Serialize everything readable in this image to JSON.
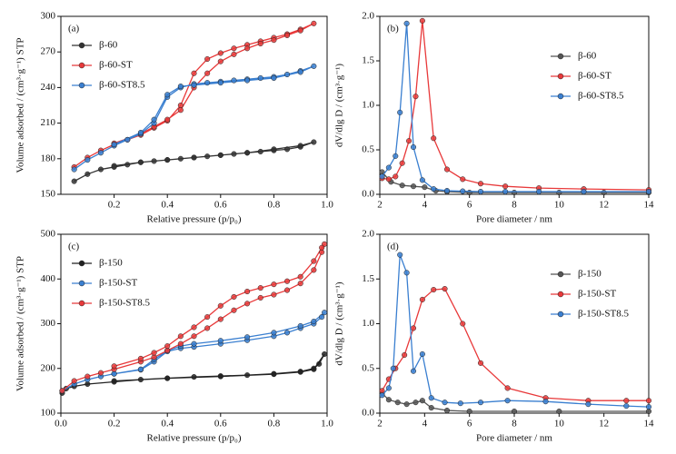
{
  "chart_data": [
    {
      "type": "line",
      "panel_label": "(a)",
      "xlabel": "Relative pressure (p/p₀)",
      "ylabel": "Volume adsorbed / (cm³·g⁻¹) STP",
      "xlim": [
        0,
        1
      ],
      "xticks": [
        0.2,
        0.4,
        0.6,
        0.8,
        {
          "value": 1,
          "label": "1.0"
        }
      ],
      "ylim": [
        150,
        300
      ],
      "yticks": [
        150,
        180,
        210,
        240,
        270,
        300
      ],
      "legend": "upper left",
      "series": [
        {
          "name": "β-60",
          "color": "#333333",
          "x": [
            0.05,
            0.1,
            0.15,
            0.2,
            0.25,
            0.3,
            0.35,
            0.4,
            0.45,
            0.5,
            0.55,
            0.6,
            0.65,
            0.7,
            0.75,
            0.8,
            0.85,
            0.9,
            0.95,
            0.9,
            0.8,
            0.7,
            0.6,
            0.5,
            0.4,
            0.3,
            0.2
          ],
          "values": [
            161,
            167,
            171,
            173,
            175,
            177,
            178,
            179,
            180,
            181,
            182,
            183,
            184,
            185,
            186,
            187,
            188,
            190,
            194,
            191,
            188,
            185,
            183,
            181,
            179,
            177,
            174
          ]
        },
        {
          "name": "β-60-ST",
          "color": "#e8393a",
          "x": [
            0.05,
            0.1,
            0.15,
            0.2,
            0.25,
            0.3,
            0.35,
            0.4,
            0.45,
            0.5,
            0.55,
            0.6,
            0.65,
            0.7,
            0.75,
            0.8,
            0.85,
            0.9,
            0.95,
            0.9,
            0.85,
            0.8,
            0.75,
            0.7,
            0.65,
            0.6,
            0.55,
            0.5,
            0.45,
            0.4,
            0.35,
            0.3,
            0.2
          ],
          "values": [
            173,
            181,
            187,
            192,
            196,
            200,
            206,
            212,
            225,
            252,
            264,
            269,
            273,
            276,
            279,
            282,
            285,
            289,
            294,
            288,
            284,
            280,
            277,
            273,
            268,
            262,
            252,
            240,
            221,
            213,
            207,
            201,
            193
          ]
        },
        {
          "name": "β-60-ST8.5",
          "color": "#3a7fd0",
          "x": [
            0.05,
            0.1,
            0.15,
            0.2,
            0.25,
            0.3,
            0.35,
            0.4,
            0.45,
            0.5,
            0.55,
            0.6,
            0.65,
            0.7,
            0.75,
            0.8,
            0.85,
            0.9,
            0.95,
            0.9,
            0.8,
            0.7,
            0.6,
            0.5,
            0.45,
            0.4,
            0.35,
            0.3,
            0.2
          ],
          "values": [
            171,
            179,
            185,
            191,
            196,
            201,
            210,
            232,
            240,
            243,
            244,
            245,
            246,
            247,
            248,
            249,
            251,
            254,
            258,
            253,
            248,
            246,
            244,
            242,
            241,
            234,
            213,
            202,
            192
          ]
        }
      ]
    },
    {
      "type": "line",
      "panel_label": "(b)",
      "xlabel": "Pore diameter / nm",
      "ylabel": "dV/dlg D / (cm³·g⁻¹)",
      "xlim": [
        2,
        14
      ],
      "xticks": [
        2,
        4,
        6,
        8,
        10,
        12,
        14
      ],
      "ylim": [
        0,
        2
      ],
      "yticks": [
        {
          "value": 0,
          "label": "0.0"
        },
        0.5,
        {
          "value": 1,
          "label": "1.0"
        },
        1.5,
        {
          "value": 2,
          "label": "2.0"
        }
      ],
      "legend": "upper right",
      "series": [
        {
          "name": "β-60",
          "color": "#555555",
          "x": [
            2.1,
            2.5,
            3,
            3.5,
            4,
            4.5,
            5,
            6,
            8,
            10,
            12,
            14
          ],
          "values": [
            0.25,
            0.14,
            0.1,
            0.09,
            0.08,
            0.04,
            0.03,
            0.02,
            0.02,
            0.02,
            0.02,
            0.02
          ]
        },
        {
          "name": "β-60-ST",
          "color": "#e8393a",
          "x": [
            2.1,
            2.4,
            2.7,
            3,
            3.3,
            3.6,
            3.9,
            4.4,
            5,
            5.7,
            6.5,
            7.6,
            9.1,
            11.1,
            14
          ],
          "values": [
            0.18,
            0.17,
            0.2,
            0.35,
            0.6,
            1.1,
            1.95,
            0.63,
            0.28,
            0.17,
            0.12,
            0.09,
            0.07,
            0.06,
            0.05
          ]
        },
        {
          "name": "β-60-ST8.5",
          "color": "#3a7fd0",
          "x": [
            2.1,
            2.4,
            2.7,
            2.9,
            3.2,
            3.5,
            3.9,
            4.4,
            5,
            5.7,
            6.5,
            7.6,
            9.1,
            11.1,
            14
          ],
          "values": [
            0.2,
            0.3,
            0.43,
            0.92,
            1.92,
            0.53,
            0.16,
            0.06,
            0.04,
            0.035,
            0.03,
            0.03,
            0.03,
            0.03,
            0.03
          ]
        }
      ]
    },
    {
      "type": "line",
      "panel_label": "(c)",
      "xlabel": "Relative pressure (p/p₀)",
      "ylabel": "Volume adsorbed / (cm³·g⁻¹) STP",
      "xlim": [
        0,
        1
      ],
      "xticks": [
        {
          "value": 0,
          "label": "0.0"
        },
        0.2,
        0.4,
        0.6,
        0.8,
        {
          "value": 1,
          "label": "1.0"
        }
      ],
      "ylim": [
        100,
        500
      ],
      "yticks": [
        100,
        200,
        300,
        400,
        500
      ],
      "legend": "upper left",
      "series": [
        {
          "name": "β-150",
          "color": "#222222",
          "x": [
            0.005,
            0.02,
            0.05,
            0.1,
            0.2,
            0.3,
            0.4,
            0.5,
            0.6,
            0.7,
            0.8,
            0.9,
            0.95,
            0.97,
            0.99,
            0.95,
            0.9,
            0.8,
            0.6,
            0.4,
            0.2
          ],
          "values": [
            145,
            155,
            160,
            165,
            170,
            175,
            178,
            181,
            183,
            185,
            188,
            193,
            200,
            210,
            232,
            198,
            192,
            187,
            182,
            178,
            172
          ]
        },
        {
          "name": "β-150-ST",
          "color": "#3a7fd0",
          "x": [
            0.005,
            0.05,
            0.1,
            0.15,
            0.2,
            0.3,
            0.35,
            0.4,
            0.45,
            0.5,
            0.6,
            0.7,
            0.8,
            0.85,
            0.9,
            0.95,
            0.98,
            0.99,
            0.95,
            0.9,
            0.8,
            0.7,
            0.6,
            0.5,
            0.45,
            0.4,
            0.35,
            0.3,
            0.2
          ],
          "values": [
            150,
            165,
            175,
            182,
            188,
            197,
            215,
            238,
            245,
            248,
            255,
            263,
            272,
            280,
            290,
            300,
            315,
            325,
            305,
            295,
            280,
            270,
            262,
            255,
            250,
            240,
            220,
            198,
            188
          ]
        },
        {
          "name": "β-150-ST8.5",
          "color": "#e8393a",
          "x": [
            0.005,
            0.05,
            0.1,
            0.15,
            0.2,
            0.3,
            0.35,
            0.4,
            0.45,
            0.5,
            0.55,
            0.6,
            0.65,
            0.7,
            0.75,
            0.8,
            0.85,
            0.9,
            0.95,
            0.98,
            0.99,
            0.98,
            0.95,
            0.9,
            0.85,
            0.8,
            0.75,
            0.7,
            0.65,
            0.6,
            0.55,
            0.5,
            0.45,
            0.4,
            0.35,
            0.3,
            0.2
          ],
          "values": [
            150,
            172,
            182,
            190,
            198,
            215,
            225,
            240,
            255,
            272,
            290,
            310,
            330,
            345,
            358,
            365,
            375,
            390,
            420,
            460,
            478,
            470,
            440,
            405,
            395,
            388,
            380,
            372,
            360,
            340,
            315,
            292,
            272,
            250,
            235,
            222,
            205
          ]
        }
      ]
    },
    {
      "type": "line",
      "panel_label": "(d)",
      "xlabel": "Pore diameter / nm",
      "ylabel": "dV/dlg D / (cm³·g⁻¹)",
      "xlim": [
        2,
        14
      ],
      "xticks": [
        2,
        4,
        6,
        8,
        10,
        12,
        14
      ],
      "ylim": [
        0,
        2
      ],
      "yticks": [
        {
          "value": 0,
          "label": "0.0"
        },
        0.5,
        {
          "value": 1,
          "label": "1.0"
        },
        1.5,
        {
          "value": 2,
          "label": "2.0"
        }
      ],
      "legend": "upper right",
      "series": [
        {
          "name": "β-150",
          "color": "#555555",
          "x": [
            2.1,
            2.4,
            2.8,
            3.2,
            3.6,
            3.9,
            4.3,
            5,
            6,
            8,
            10,
            14
          ],
          "values": [
            0.22,
            0.15,
            0.12,
            0.1,
            0.12,
            0.14,
            0.06,
            0.03,
            0.02,
            0.02,
            0.02,
            0.02
          ]
        },
        {
          "name": "β-150-ST",
          "color": "#e8393a",
          "x": [
            2.1,
            2.4,
            2.7,
            3.1,
            3.5,
            3.9,
            4.4,
            4.9,
            5.7,
            6.5,
            7.7,
            9.4,
            11.3,
            13,
            14
          ],
          "values": [
            0.25,
            0.38,
            0.5,
            0.65,
            0.95,
            1.27,
            1.38,
            1.39,
            1.0,
            0.56,
            0.28,
            0.17,
            0.14,
            0.14,
            0.14
          ]
        },
        {
          "name": "β-150-ST8.5",
          "color": "#3a7fd0",
          "x": [
            2.1,
            2.4,
            2.6,
            2.9,
            3.2,
            3.5,
            3.9,
            4.3,
            4.9,
            5.6,
            6.5,
            7.7,
            9.4,
            11.3,
            13,
            14
          ],
          "values": [
            0.2,
            0.28,
            0.5,
            1.77,
            1.57,
            0.47,
            0.66,
            0.17,
            0.12,
            0.11,
            0.12,
            0.14,
            0.13,
            0.1,
            0.08,
            0.07
          ]
        }
      ]
    }
  ]
}
